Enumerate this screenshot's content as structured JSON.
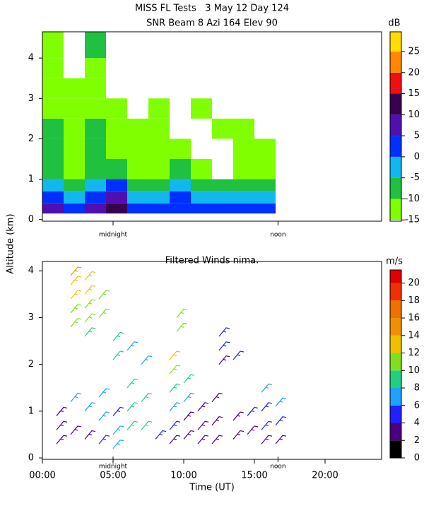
{
  "chart_data": [
    {
      "type": "heatmap",
      "title": "MISS FL Tests   3 May 12 Day 124",
      "subtitle": "SNR Beam 8 Azi 164 Elev 90",
      "ylabel": "Altitude (km)",
      "colorbar_label": "dB",
      "xlim": [
        0,
        24
      ],
      "ylim": [
        -0.04,
        4.65
      ],
      "yticks": [
        0,
        1,
        2,
        3,
        4
      ],
      "xticks": [
        {
          "value": 5,
          "label": "midnight"
        },
        {
          "value": 16.67,
          "label": "noon"
        }
      ],
      "x_edges": [
        0,
        1.5,
        3,
        4.5,
        6,
        7.5,
        9,
        10.5,
        12,
        13.5,
        15,
        16.5
      ],
      "y_edges": [
        0.15,
        0.4,
        0.7,
        1.0,
        1.5,
        2.0,
        2.5,
        3.0,
        3.5,
        4.0,
        4.65
      ],
      "z": [
        [
          8,
          3,
          6,
          14,
          4,
          2,
          3,
          0,
          1,
          2,
          1
        ],
        [
          2,
          -2,
          2,
          8,
          -1,
          -3,
          1,
          -4,
          -3,
          -1,
          -3
        ],
        [
          -3,
          -8,
          -3,
          0,
          -6,
          -7,
          -4,
          -8,
          -9,
          -6,
          -7
        ],
        [
          -6,
          -11,
          -8,
          -6,
          -11,
          -12,
          -9,
          -12,
          null,
          -11,
          -12
        ],
        [
          -9,
          -12,
          -9,
          -11,
          -12,
          -12,
          -12,
          null,
          null,
          -12,
          -13
        ],
        [
          -10,
          -13,
          -10,
          -12,
          -13,
          -13,
          null,
          null,
          -13,
          -13,
          null
        ],
        [
          -11,
          -12,
          -11,
          -13,
          null,
          -13,
          null,
          -13,
          null,
          null,
          null
        ],
        [
          -12,
          -12,
          -12,
          null,
          null,
          null,
          null,
          null,
          null,
          null,
          null
        ],
        [
          -12,
          null,
          -11,
          null,
          null,
          null,
          null,
          null,
          null,
          null,
          null
        ],
        [
          -13,
          null,
          -10,
          null,
          null,
          null,
          null,
          null,
          null,
          null,
          null
        ]
      ],
      "levels": [
        -15,
        -10,
        -5,
        0,
        5,
        10,
        15,
        20,
        25,
        30
      ],
      "colors": [
        "#80ff00",
        "#20c040",
        "#10b8ee",
        "#0030ff",
        "#5010b0",
        "#3a0050",
        "#ee1010",
        "#ff8800",
        "#ffdd00"
      ],
      "clim": [
        -15.3,
        29.7
      ],
      "cticks": [
        -15,
        -10,
        -5,
        0,
        5,
        10,
        15,
        20,
        25
      ]
    },
    {
      "type": "barbs",
      "title": "Filtered Winds nima.",
      "xlabel": "Time (UT)",
      "colorbar_label": "m/s",
      "xlim": [
        0,
        24
      ],
      "ylim": [
        -0.03,
        4.2
      ],
      "yticks": [
        0,
        1,
        2,
        3,
        4
      ],
      "xticks": [
        {
          "value": 0,
          "label": "00:00"
        },
        {
          "value": 5,
          "label": "05:00"
        },
        {
          "value": 10,
          "label": "10:00"
        },
        {
          "value": 15,
          "label": "15:00"
        },
        {
          "value": 20,
          "label": "20:00"
        }
      ],
      "local_ticks": [
        {
          "value": 5,
          "label": "midnight"
        },
        {
          "value": 16.67,
          "label": "noon"
        }
      ],
      "barbs": {
        "x": [
          1,
          1,
          1,
          2,
          2,
          2,
          2,
          2,
          2,
          2,
          3,
          3,
          3,
          3,
          3,
          3,
          3,
          4,
          4,
          4,
          4,
          4,
          5,
          5,
          5,
          5,
          5,
          6,
          6,
          6,
          6,
          7,
          7,
          7,
          8,
          9,
          9,
          9,
          9,
          9,
          9,
          9.5,
          9.5,
          10,
          10,
          10,
          10,
          11,
          11,
          11,
          12,
          12,
          12,
          12.5,
          12.5,
          12.5,
          13.5,
          13.5,
          13.5,
          14.5,
          14.5,
          15.5,
          15.5,
          15.5,
          15.5,
          16.5,
          16.5,
          16.5
        ],
        "y": [
          0.3,
          0.6,
          0.9,
          2.8,
          3.1,
          3.4,
          3.7,
          3.9,
          1.2,
          0.5,
          2.6,
          2.9,
          3.2,
          3.5,
          3.8,
          1.0,
          0.4,
          3.0,
          3.4,
          0.8,
          0.3,
          1.3,
          2.1,
          2.5,
          0.9,
          0.5,
          0.2,
          2.3,
          1.5,
          1.0,
          0.6,
          2.0,
          1.2,
          0.6,
          0.4,
          2.1,
          1.8,
          1.4,
          1.0,
          0.6,
          0.3,
          3.0,
          2.7,
          1.6,
          1.2,
          0.8,
          0.4,
          1.0,
          0.6,
          0.3,
          1.2,
          0.7,
          0.3,
          2.6,
          2.3,
          2.0,
          2.1,
          0.8,
          0.4,
          0.9,
          0.5,
          1.4,
          1.0,
          0.6,
          0.3,
          1.1,
          0.7,
          0.3
        ],
        "speed": [
          3,
          3,
          3,
          10,
          11,
          12,
          13,
          14,
          6,
          2,
          9,
          10,
          11,
          12,
          13,
          6,
          3,
          10,
          10,
          6,
          5,
          7,
          9,
          9,
          5,
          6,
          7,
          7,
          8,
          9,
          8,
          7,
          9,
          8,
          4,
          13,
          11,
          9,
          7,
          4,
          3,
          10,
          11,
          8,
          6,
          3,
          2,
          3,
          3,
          2,
          3,
          3,
          3,
          5,
          4,
          3,
          4,
          3,
          2,
          4,
          3,
          6,
          5,
          4,
          3,
          6,
          4,
          3
        ]
      },
      "levels": [
        0,
        2,
        4,
        6,
        8,
        10,
        12,
        14,
        16,
        18,
        20,
        22
      ],
      "colors": [
        "#000000",
        "#4b0082",
        "#2020ff",
        "#20a0ff",
        "#20d080",
        "#80e020",
        "#f0c000",
        "#f09000",
        "#f07000",
        "#f03000",
        "#e00000"
      ],
      "clim": [
        0,
        21.5
      ],
      "cticks": [
        0,
        2,
        4,
        6,
        8,
        10,
        12,
        14,
        16,
        18,
        20
      ]
    }
  ]
}
